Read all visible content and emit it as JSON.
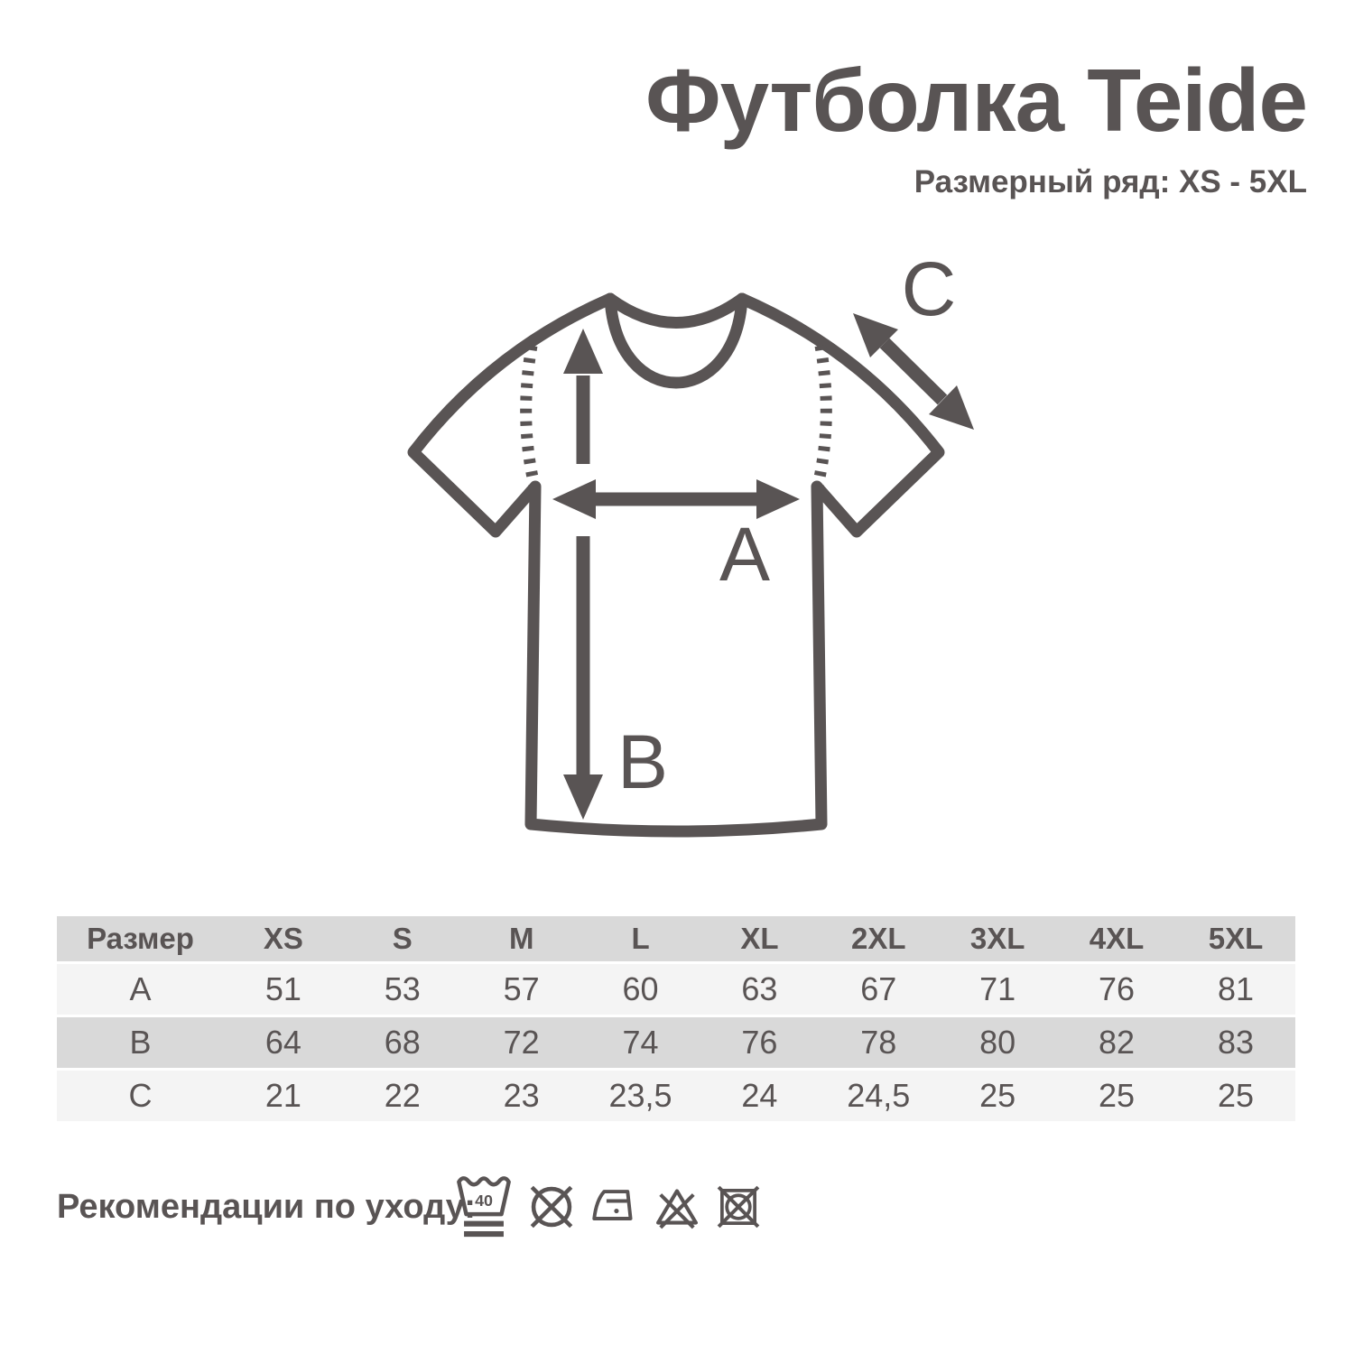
{
  "page": {
    "title": "Футболка Teide",
    "subtitle": "Размерный ряд: XS - 5XL"
  },
  "diagram": {
    "label_a": "A",
    "label_b": "B",
    "label_c": "C"
  },
  "size_table": {
    "header": [
      "Размер",
      "XS",
      "S",
      "M",
      "L",
      "XL",
      "2XL",
      "3XL",
      "4XL",
      "5XL"
    ],
    "rows": [
      {
        "label": "A",
        "values": [
          "51",
          "53",
          "57",
          "60",
          "63",
          "67",
          "71",
          "76",
          "81"
        ]
      },
      {
        "label": "B",
        "values": [
          "64",
          "68",
          "72",
          "74",
          "76",
          "78",
          "80",
          "82",
          "83"
        ]
      },
      {
        "label": "C",
        "values": [
          "21",
          "22",
          "23",
          "23,5",
          "24",
          "24,5",
          "25",
          "25",
          "25"
        ]
      }
    ]
  },
  "care": {
    "label": "Рекомендации по уходу:",
    "wash_temp": "40",
    "icons": [
      "wash-40-very-gentle",
      "do-not-dry-clean",
      "iron-low-temperature",
      "do-not-bleach",
      "do-not-tumble-dry"
    ]
  },
  "colors": {
    "ink": "#595454",
    "row_gray": "#d9d9d9",
    "row_light": "#f4f4f4",
    "background": "#ffffff"
  }
}
